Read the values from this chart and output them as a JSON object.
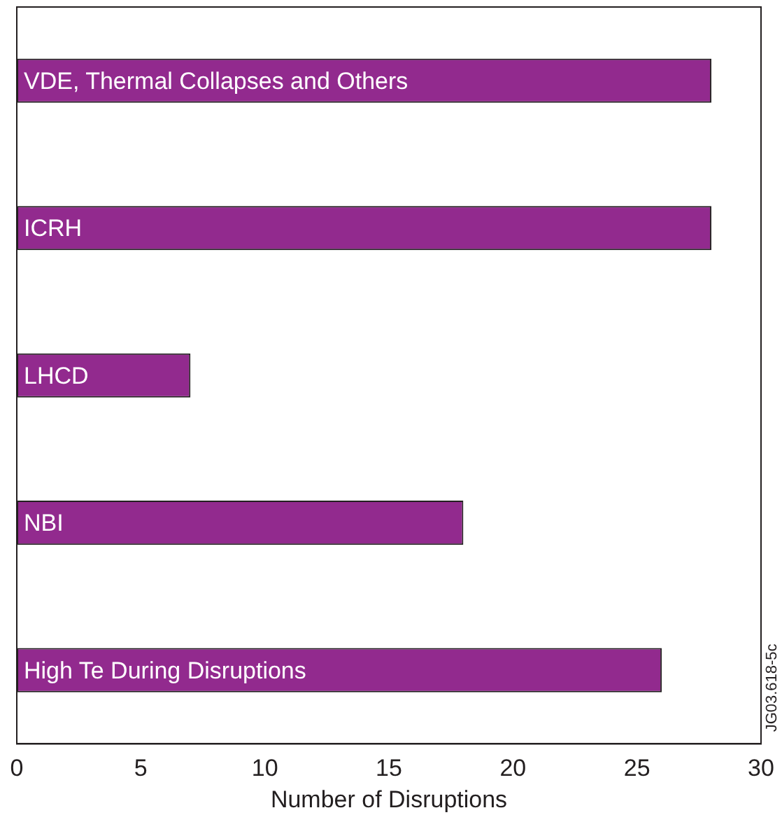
{
  "chart_data": {
    "type": "bar",
    "orientation": "horizontal",
    "xlabel": "Number of Disruptions",
    "categories": [
      "VDE, Thermal Collapses and Others",
      "ICRH",
      "LHCD",
      "NBI",
      "High Te During Disruptions"
    ],
    "values": [
      28,
      28,
      7,
      18,
      26
    ],
    "color": "#922a8e",
    "xlim": [
      0,
      30
    ],
    "xticks": [
      0,
      5,
      10,
      15,
      20,
      25,
      30
    ],
    "grid": false,
    "legend": false,
    "tick_labels": "x",
    "annotations": [
      "JG03.618-5c"
    ]
  }
}
